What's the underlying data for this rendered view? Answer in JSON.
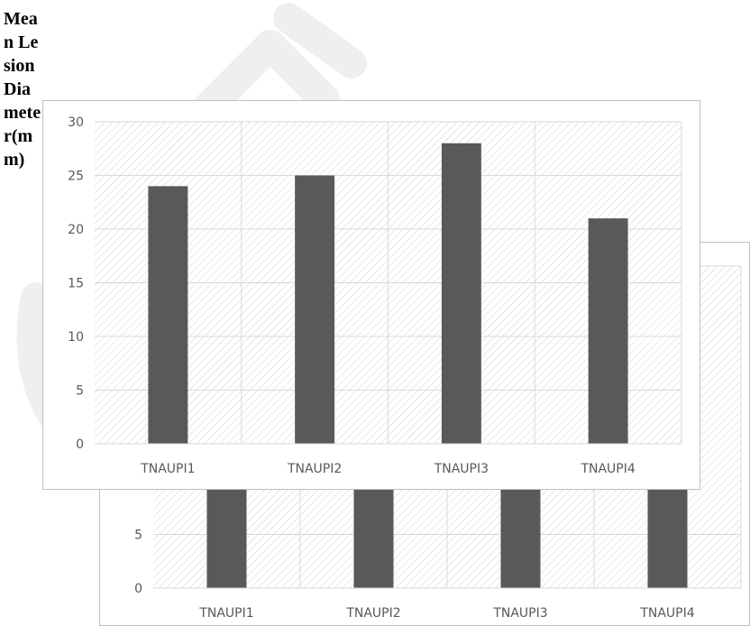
{
  "y_axis_label": "Mean Lesion Diameter(mm)",
  "colors": {
    "bar": "#595959",
    "grid": "#d9d9d9",
    "hatch": "#d0d0d0",
    "frame": "#bfbfbf"
  },
  "chart_data": [
    {
      "type": "bar",
      "categories": [
        "TNAUPI1",
        "TNAUPI2",
        "TNAUPI3",
        "TNAUPI4"
      ],
      "values": [
        24,
        25,
        28,
        21
      ],
      "ylim": [
        0,
        30
      ],
      "yticks": [
        "0",
        "5",
        "10",
        "15",
        "20",
        "25",
        "30"
      ],
      "grid": true
    },
    {
      "type": "bar",
      "categories": [
        "TNAUPI1",
        "TNAUPI2",
        "TNAUPI3",
        "TNAUPI4"
      ],
      "ylim": [
        0,
        30
      ],
      "yticks": [
        "0",
        "5"
      ],
      "grid": true,
      "partially_hidden": true
    }
  ]
}
